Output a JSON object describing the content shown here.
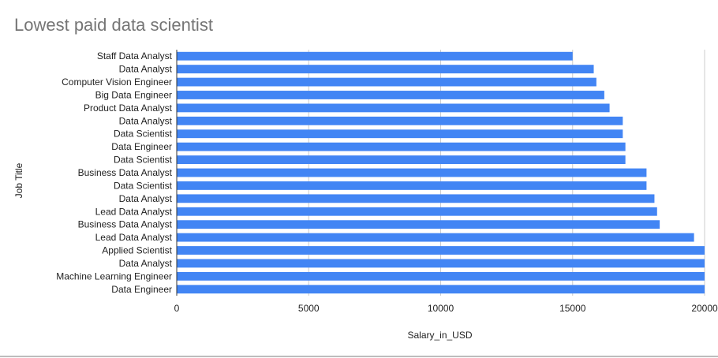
{
  "chart_data": {
    "type": "bar",
    "orientation": "horizontal",
    "title": "Lowest paid data scientist",
    "xlabel": "Salary_in_USD",
    "ylabel": "Job Title",
    "xlim": [
      0,
      20000
    ],
    "xticks": [
      0,
      5000,
      10000,
      15000,
      20000
    ],
    "grid": true,
    "legend": "none",
    "bar_color": "#4285f4",
    "categories": [
      "Staff Data Analyst",
      "Data Analyst",
      "Computer Vision Engineer",
      "Big Data Engineer",
      "Product Data Analyst",
      "Data Analyst",
      "Data Scientist",
      "Data Engineer",
      "Data Scientist",
      "Business Data Analyst",
      "Data Scientist",
      "Data Analyst",
      "Lead Data Analyst",
      "Business Data Analyst",
      "Lead Data Analyst",
      "Applied Scientist",
      "Data Analyst",
      "Machine Learning Engineer",
      "Data Engineer"
    ],
    "values": [
      15000,
      15800,
      15900,
      16200,
      16400,
      16900,
      16900,
      17000,
      17000,
      17800,
      17800,
      18100,
      18200,
      18300,
      19600,
      20000,
      20000,
      20000,
      20000
    ]
  }
}
